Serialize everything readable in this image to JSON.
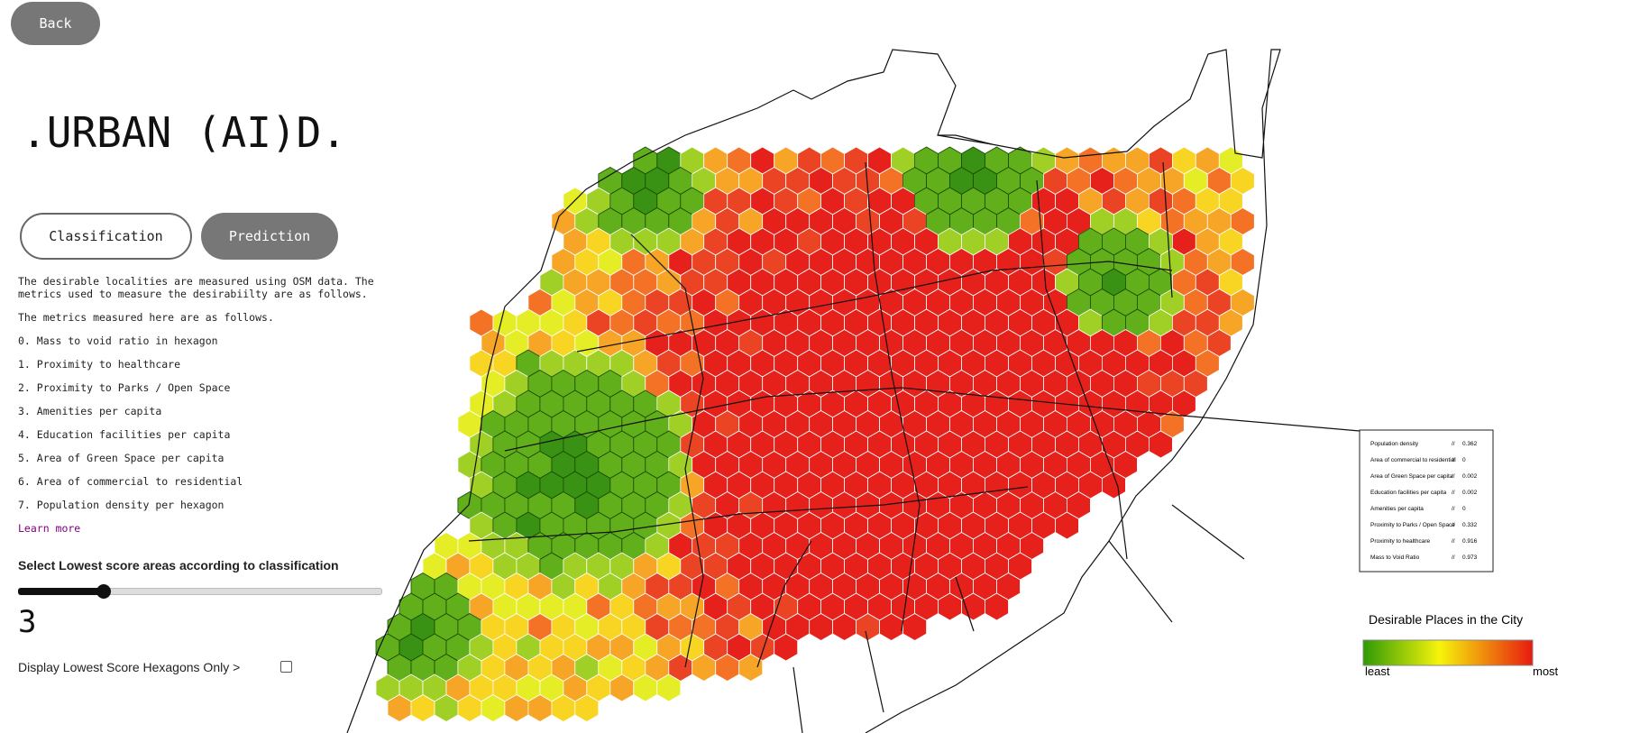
{
  "back": "Back",
  "title": ".URBAN (AI)D.",
  "tabs": [
    "Classification",
    "Prediction"
  ],
  "description": [
    "The desirable localities are measured using OSM data. The",
    "metrics used to measure the desirabiilty are as follows."
  ],
  "metrics_heading": "The metrics measured here are as follows.",
  "metrics": [
    "0. Mass to void ratio in hexagon",
    "1. Proximity to healthcare",
    "2. Proximity to Parks / Open Space",
    "3. Amenities per capita",
    "4. Education facilities per capita",
    "5. Area of Green Space per capita",
    "6. Area of commercial to residential",
    "7. Population density per hexagon"
  ],
  "learn_more": "Learn more",
  "slider": {
    "label": "Select Lowest score areas according to classification",
    "value": 3
  },
  "checkbox_label": "Display Lowest Score Hexagons Only >",
  "info_box": [
    {
      "label": "Population density",
      "sep": "//",
      "value": "0.362"
    },
    {
      "label": "Area of commercial to residential",
      "sep": "//",
      "value": "0"
    },
    {
      "label": "Area of Green Space per capita",
      "sep": "//",
      "value": "0.002"
    },
    {
      "label": "Education facilities per capita",
      "sep": "//",
      "value": "0.002"
    },
    {
      "label": "Amenities per capita",
      "sep": "//",
      "value": "0"
    },
    {
      "label": "Proximity to Parks / Open Space",
      "sep": "//",
      "value": "0.332"
    },
    {
      "label": "Proximity to healthcare",
      "sep": "//",
      "value": "0.916"
    },
    {
      "label": "Mass to Void Ratio",
      "sep": "//",
      "value": "0.973"
    }
  ],
  "legend": {
    "title": "Desirable Places in the City",
    "low": "least",
    "high": "most"
  }
}
